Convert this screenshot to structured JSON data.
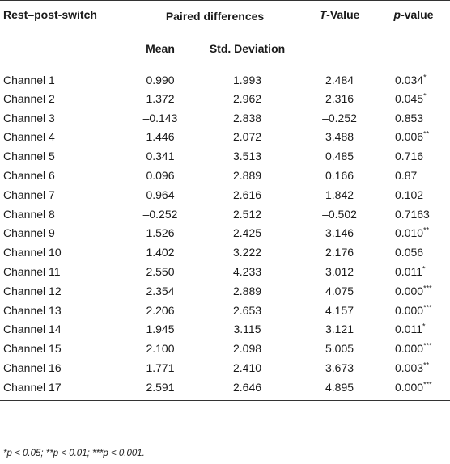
{
  "table": {
    "headers": {
      "row_label": "Rest–post-switch",
      "group": "Paired differences",
      "mean": "Mean",
      "std": "Std. Deviation",
      "t_prefix": "T",
      "t_suffix": "-Value",
      "p_prefix": "p",
      "p_suffix": "-value"
    },
    "rows": [
      {
        "channel": "Channel 1",
        "mean": "0.990",
        "std": "1.993",
        "t": "2.484",
        "p": "0.034",
        "sig": "*"
      },
      {
        "channel": "Channel 2",
        "mean": "1.372",
        "std": "2.962",
        "t": "2.316",
        "p": "0.045",
        "sig": "*"
      },
      {
        "channel": "Channel 3",
        "mean": "–0.143",
        "std": "2.838",
        "t": "–0.252",
        "p": "0.853",
        "sig": ""
      },
      {
        "channel": "Channel 4",
        "mean": "1.446",
        "std": "2.072",
        "t": "3.488",
        "p": "0.006",
        "sig": "**"
      },
      {
        "channel": "Channel 5",
        "mean": "0.341",
        "std": "3.513",
        "t": "0.485",
        "p": "0.716",
        "sig": ""
      },
      {
        "channel": "Channel 6",
        "mean": "0.096",
        "std": "2.889",
        "t": "0.166",
        "p": "0.87",
        "sig": ""
      },
      {
        "channel": "Channel 7",
        "mean": "0.964",
        "std": "2.616",
        "t": "1.842",
        "p": "0.102",
        "sig": ""
      },
      {
        "channel": "Channel 8",
        "mean": "–0.252",
        "std": "2.512",
        "t": "–0.502",
        "p": "0.7163",
        "sig": ""
      },
      {
        "channel": "Channel 9",
        "mean": "1.526",
        "std": "2.425",
        "t": "3.146",
        "p": "0.010",
        "sig": "**"
      },
      {
        "channel": "Channel 10",
        "mean": "1.402",
        "std": "3.222",
        "t": "2.176",
        "p": "0.056",
        "sig": ""
      },
      {
        "channel": "Channel 11",
        "mean": "2.550",
        "std": "4.233",
        "t": "3.012",
        "p": "0.011",
        "sig": "*"
      },
      {
        "channel": "Channel 12",
        "mean": "2.354",
        "std": "2.889",
        "t": "4.075",
        "p": "0.000",
        "sig": "***"
      },
      {
        "channel": "Channel 13",
        "mean": "2.206",
        "std": "2.653",
        "t": "4.157",
        "p": "0.000",
        "sig": "***"
      },
      {
        "channel": "Channel 14",
        "mean": "1.945",
        "std": "3.115",
        "t": "3.121",
        "p": "0.011",
        "sig": "*"
      },
      {
        "channel": "Channel 15",
        "mean": "2.100",
        "std": "2.098",
        "t": "5.005",
        "p": "0.000",
        "sig": "***"
      },
      {
        "channel": "Channel 16",
        "mean": "1.771",
        "std": "2.410",
        "t": "3.673",
        "p": "0.003",
        "sig": "**"
      },
      {
        "channel": "Channel 17",
        "mean": "2.591",
        "std": "2.646",
        "t": "4.895",
        "p": "0.000",
        "sig": "***"
      }
    ]
  },
  "footnote": "*p < 0.05; **p < 0.01; ***p < 0.001."
}
